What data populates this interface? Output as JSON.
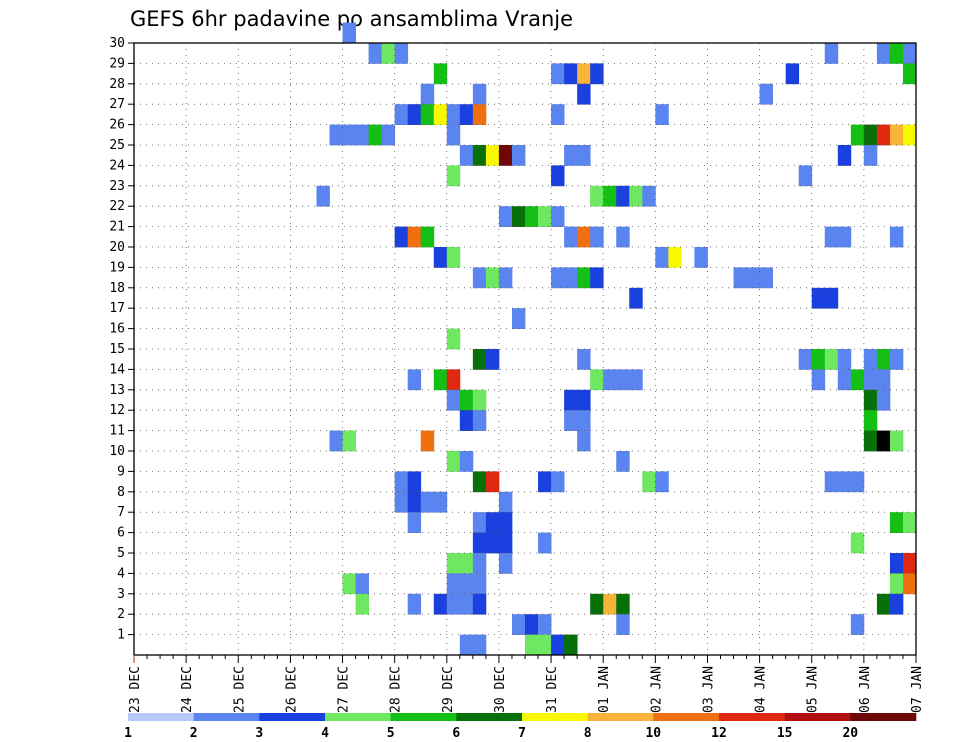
{
  "chart_data": {
    "type": "heatmap",
    "title": "GEFS 6hr padavine po ansamblima Vranje",
    "xlabel": "",
    "ylabel": "",
    "x_tick_labels": [
      "23 DEC",
      "24 DEC",
      "25 DEC",
      "26 DEC",
      "27 DEC",
      "28 DEC",
      "29 DEC",
      "30 DEC",
      "31 DEC",
      "01 JAN",
      "02 JAN",
      "03 JAN",
      "04 JAN",
      "05 JAN",
      "06 JAN",
      "07 JAN"
    ],
    "y_tick_labels": [
      "1",
      "2",
      "3",
      "4",
      "5",
      "6",
      "7",
      "8",
      "9",
      "10",
      "11",
      "12",
      "13",
      "14",
      "15",
      "16",
      "17",
      "18",
      "19",
      "20",
      "21",
      "22",
      "23",
      "24",
      "25",
      "26",
      "27",
      "28",
      "29",
      "30"
    ],
    "x_range": [
      0,
      60
    ],
    "y_range": [
      0,
      30
    ],
    "time_step": "6hr",
    "grid": true,
    "colorbar": {
      "placement": "bottom",
      "levels": [
        "1",
        "2",
        "3",
        "4",
        "5",
        "6",
        "7",
        "8",
        "10",
        "12",
        "15",
        "20"
      ],
      "colors": [
        "#b8c8f8",
        "#5a84f0",
        "#1a40e0",
        "#6ee860",
        "#14c014",
        "#087008",
        "#f8f800",
        "#f8b438",
        "#f07010",
        "#e02810",
        "#b01010",
        "#6e0808"
      ]
    },
    "cells": [
      [
        16,
        30,
        1
      ],
      [
        18,
        29,
        1
      ],
      [
        19,
        29,
        3
      ],
      [
        20,
        29,
        1
      ],
      [
        53,
        29,
        1
      ],
      [
        57,
        29,
        1
      ],
      [
        58,
        29,
        4
      ],
      [
        59,
        29,
        1
      ],
      [
        23,
        28,
        4
      ],
      [
        32,
        28,
        1
      ],
      [
        33,
        28,
        2
      ],
      [
        34,
        28,
        7
      ],
      [
        35,
        28,
        2
      ],
      [
        50,
        28,
        2
      ],
      [
        59,
        28,
        4
      ],
      [
        22,
        27,
        1
      ],
      [
        26,
        27,
        1
      ],
      [
        34,
        27,
        2
      ],
      [
        48,
        27,
        1
      ],
      [
        20,
        26,
        1
      ],
      [
        21,
        26,
        2
      ],
      [
        22,
        26,
        4
      ],
      [
        23,
        26,
        6
      ],
      [
        24,
        26,
        1
      ],
      [
        25,
        26,
        2
      ],
      [
        26,
        26,
        8
      ],
      [
        32,
        26,
        1
      ],
      [
        40,
        26,
        1
      ],
      [
        15,
        25,
        1
      ],
      [
        16,
        25,
        1
      ],
      [
        17,
        25,
        1
      ],
      [
        18,
        25,
        4
      ],
      [
        19,
        25,
        1
      ],
      [
        24,
        25,
        1
      ],
      [
        55,
        25,
        4
      ],
      [
        56,
        25,
        5
      ],
      [
        57,
        25,
        9
      ],
      [
        58,
        25,
        7
      ],
      [
        59,
        25,
        6
      ],
      [
        25,
        24,
        1
      ],
      [
        26,
        24,
        5
      ],
      [
        27,
        24,
        6
      ],
      [
        28,
        24,
        11
      ],
      [
        29,
        24,
        1
      ],
      [
        33,
        24,
        1
      ],
      [
        34,
        24,
        1
      ],
      [
        54,
        24,
        2
      ],
      [
        56,
        24,
        1
      ],
      [
        24,
        23,
        3
      ],
      [
        32,
        23,
        2
      ],
      [
        51,
        23,
        1
      ],
      [
        14,
        22,
        1
      ],
      [
        35,
        22,
        3
      ],
      [
        36,
        22,
        4
      ],
      [
        37,
        22,
        2
      ],
      [
        38,
        22,
        3
      ],
      [
        39,
        22,
        1
      ],
      [
        28,
        21,
        1
      ],
      [
        29,
        21,
        5
      ],
      [
        30,
        21,
        4
      ],
      [
        31,
        21,
        3
      ],
      [
        32,
        21,
        1
      ],
      [
        20,
        20,
        2
      ],
      [
        21,
        20,
        8
      ],
      [
        22,
        20,
        4
      ],
      [
        33,
        20,
        1
      ],
      [
        34,
        20,
        8
      ],
      [
        35,
        20,
        1
      ],
      [
        37,
        20,
        1
      ],
      [
        53,
        20,
        1
      ],
      [
        54,
        20,
        1
      ],
      [
        58,
        20,
        1
      ],
      [
        23,
        19,
        2
      ],
      [
        24,
        19,
        3
      ],
      [
        40,
        19,
        1
      ],
      [
        41,
        19,
        6
      ],
      [
        43,
        19,
        1
      ],
      [
        26,
        18,
        1
      ],
      [
        27,
        18,
        3
      ],
      [
        28,
        18,
        1
      ],
      [
        32,
        18,
        1
      ],
      [
        33,
        18,
        1
      ],
      [
        34,
        18,
        4
      ],
      [
        35,
        18,
        2
      ],
      [
        46,
        18,
        1
      ],
      [
        47,
        18,
        1
      ],
      [
        48,
        18,
        1
      ],
      [
        38,
        17,
        2
      ],
      [
        52,
        17,
        2
      ],
      [
        53,
        17,
        2
      ],
      [
        29,
        16,
        1
      ],
      [
        24,
        15,
        3
      ],
      [
        26,
        14,
        5
      ],
      [
        27,
        14,
        2
      ],
      [
        34,
        14,
        1
      ],
      [
        51,
        14,
        1
      ],
      [
        52,
        14,
        4
      ],
      [
        53,
        14,
        3
      ],
      [
        54,
        14,
        1
      ],
      [
        56,
        14,
        1
      ],
      [
        57,
        14,
        4
      ],
      [
        58,
        14,
        1
      ],
      [
        21,
        13,
        1
      ],
      [
        23,
        13,
        4
      ],
      [
        24,
        13,
        9
      ],
      [
        35,
        13,
        3
      ],
      [
        36,
        13,
        1
      ],
      [
        37,
        13,
        1
      ],
      [
        38,
        13,
        1
      ],
      [
        52,
        13,
        1
      ],
      [
        54,
        13,
        1
      ],
      [
        55,
        13,
        4
      ],
      [
        56,
        13,
        1
      ],
      [
        57,
        13,
        1
      ],
      [
        24,
        12,
        1
      ],
      [
        25,
        12,
        4
      ],
      [
        26,
        12,
        3
      ],
      [
        33,
        12,
        2
      ],
      [
        34,
        12,
        2
      ],
      [
        56,
        12,
        5
      ],
      [
        57,
        12,
        1
      ],
      [
        25,
        11,
        2
      ],
      [
        26,
        11,
        1
      ],
      [
        33,
        11,
        1
      ],
      [
        34,
        11,
        1
      ],
      [
        56,
        11,
        4
      ],
      [
        15,
        10,
        1
      ],
      [
        16,
        10,
        3
      ],
      [
        22,
        10,
        8
      ],
      [
        34,
        10,
        1
      ],
      [
        56,
        10,
        5
      ],
      [
        57,
        10,
        12
      ],
      [
        58,
        10,
        3
      ],
      [
        24,
        9,
        3
      ],
      [
        25,
        9,
        1
      ],
      [
        37,
        9,
        1
      ],
      [
        20,
        8,
        1
      ],
      [
        21,
        8,
        2
      ],
      [
        26,
        8,
        5
      ],
      [
        27,
        8,
        9
      ],
      [
        31,
        8,
        2
      ],
      [
        32,
        8,
        1
      ],
      [
        39,
        8,
        3
      ],
      [
        40,
        8,
        1
      ],
      [
        53,
        8,
        1
      ],
      [
        54,
        8,
        1
      ],
      [
        55,
        8,
        1
      ],
      [
        20,
        7,
        1
      ],
      [
        21,
        7,
        2
      ],
      [
        22,
        7,
        1
      ],
      [
        23,
        7,
        1
      ],
      [
        28,
        7,
        1
      ],
      [
        21,
        6,
        1
      ],
      [
        26,
        6,
        1
      ],
      [
        27,
        6,
        2
      ],
      [
        28,
        6,
        2
      ],
      [
        58,
        6,
        4
      ],
      [
        59,
        6,
        3
      ],
      [
        26,
        5,
        2
      ],
      [
        27,
        5,
        2
      ],
      [
        28,
        5,
        2
      ],
      [
        31,
        5,
        1
      ],
      [
        55,
        5,
        3
      ],
      [
        24,
        4,
        3
      ],
      [
        25,
        4,
        3
      ],
      [
        26,
        4,
        1
      ],
      [
        28,
        4,
        1
      ],
      [
        58,
        4,
        2
      ],
      [
        59,
        4,
        9
      ],
      [
        16,
        3,
        3
      ],
      [
        17,
        3,
        1
      ],
      [
        24,
        3,
        1
      ],
      [
        25,
        3,
        1
      ],
      [
        26,
        3,
        1
      ],
      [
        58,
        3,
        3
      ],
      [
        59,
        3,
        8
      ],
      [
        17,
        2,
        3
      ],
      [
        21,
        2,
        1
      ],
      [
        23,
        2,
        2
      ],
      [
        24,
        2,
        1
      ],
      [
        25,
        2,
        1
      ],
      [
        26,
        2,
        2
      ],
      [
        35,
        2,
        5
      ],
      [
        36,
        2,
        7
      ],
      [
        37,
        2,
        5
      ],
      [
        57,
        2,
        5
      ],
      [
        58,
        2,
        2
      ],
      [
        29,
        1,
        1
      ],
      [
        30,
        1,
        2
      ],
      [
        31,
        1,
        1
      ],
      [
        37,
        1,
        1
      ],
      [
        55,
        1,
        1
      ],
      [
        25,
        0,
        1
      ],
      [
        26,
        0,
        1
      ],
      [
        30,
        0,
        3
      ],
      [
        31,
        0,
        3
      ],
      [
        32,
        0,
        2
      ],
      [
        33,
        0,
        5
      ]
    ]
  }
}
